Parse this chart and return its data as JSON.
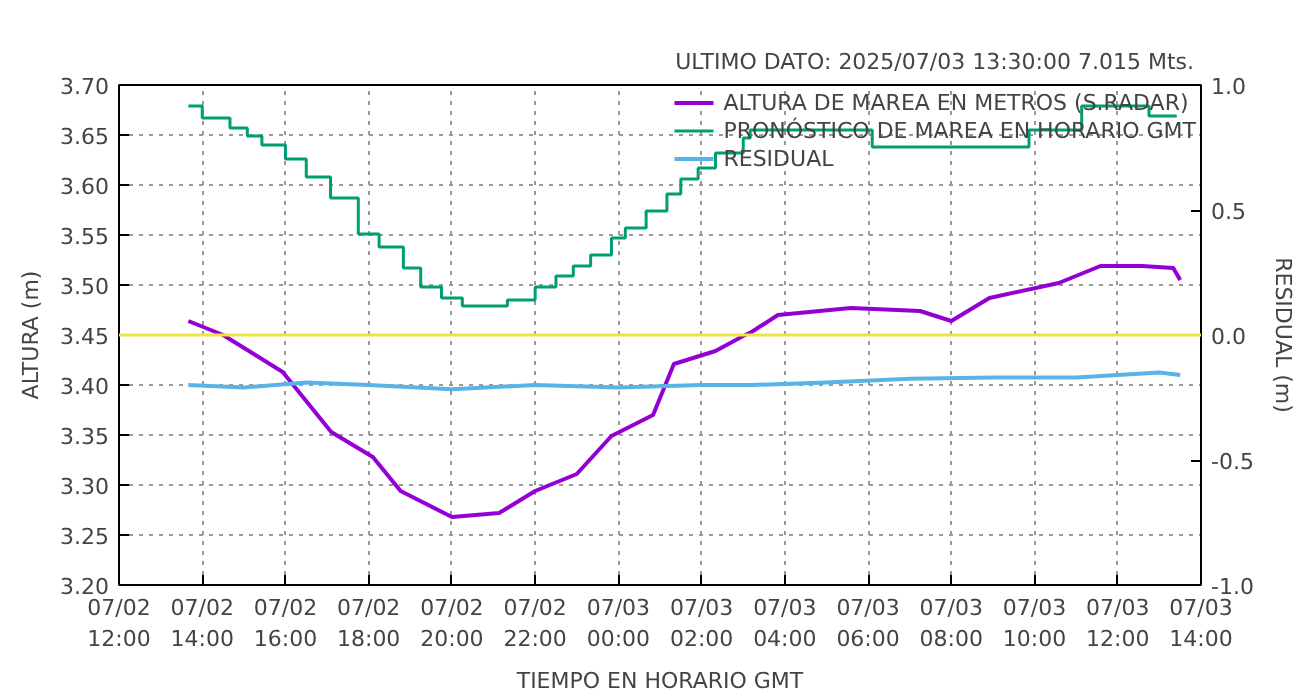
{
  "chart_data": {
    "type": "line",
    "title": "ULTIMO DATO: 2025/07/03  13:30:00 7.015 Mts.",
    "xlabel": "TIEMPO EN HORARIO GMT",
    "ylabel": "ALTURA (m)",
    "y2label": "RESIDUAL (m)",
    "xlim": [
      "2025-07-02T12:00",
      "2025-07-03T14:00"
    ],
    "xticks": [
      {
        "value": "2025-07-02T12:00",
        "label": "07/02\n12:00"
      },
      {
        "value": "2025-07-02T14:00",
        "label": "07/02\n14:00"
      },
      {
        "value": "2025-07-02T16:00",
        "label": "07/02\n16:00"
      },
      {
        "value": "2025-07-02T18:00",
        "label": "07/02\n18:00"
      },
      {
        "value": "2025-07-02T20:00",
        "label": "07/02\n20:00"
      },
      {
        "value": "2025-07-02T22:00",
        "label": "07/02\n22:00"
      },
      {
        "value": "2025-07-03T00:00",
        "label": "07/03\n00:00"
      },
      {
        "value": "2025-07-03T02:00",
        "label": "07/03\n02:00"
      },
      {
        "value": "2025-07-03T04:00",
        "label": "07/03\n04:00"
      },
      {
        "value": "2025-07-03T06:00",
        "label": "07/03\n06:00"
      },
      {
        "value": "2025-07-03T08:00",
        "label": "07/03\n08:00"
      },
      {
        "value": "2025-07-03T10:00",
        "label": "07/03\n10:00"
      },
      {
        "value": "2025-07-03T12:00",
        "label": "07/03\n12:00"
      },
      {
        "value": "2025-07-03T14:00",
        "label": "07/03\n14:00"
      }
    ],
    "ylim": [
      3.2,
      3.7
    ],
    "yticks": [
      {
        "value": 3.2,
        "label": "3.20"
      },
      {
        "value": 3.25,
        "label": "3.25"
      },
      {
        "value": 3.3,
        "label": "3.30"
      },
      {
        "value": 3.35,
        "label": "3.35"
      },
      {
        "value": 3.4,
        "label": "3.40"
      },
      {
        "value": 3.45,
        "label": "3.45"
      },
      {
        "value": 3.5,
        "label": "3.50"
      },
      {
        "value": 3.55,
        "label": "3.55"
      },
      {
        "value": 3.6,
        "label": "3.60"
      },
      {
        "value": 3.65,
        "label": "3.65"
      },
      {
        "value": 3.7,
        "label": "3.70"
      }
    ],
    "y2lim": [
      -1,
      1
    ],
    "y2ticks": [
      {
        "value": -1,
        "label": "-1.0"
      },
      {
        "value": -0.5,
        "label": "-0.5"
      },
      {
        "value": 0,
        "label": "0.0"
      },
      {
        "value": 0.5,
        "label": "0.5"
      },
      {
        "value": 1,
        "label": "1.0"
      }
    ],
    "grid": true,
    "legend": "top right",
    "ref_lines": [
      {
        "axis": "y2",
        "value": 0,
        "color": "#f0e442"
      }
    ],
    "series": [
      {
        "name": "ALTURA DE MAREA EN METROS (S.RADAR)",
        "color": "#9400d3",
        "x": [
          "2025-07-02T13:40",
          "2025-07-02T14:30",
          "2025-07-02T15:56",
          "2025-07-02T17:06",
          "2025-07-02T18:06",
          "2025-07-02T18:46",
          "2025-07-02T20:00",
          "2025-07-02T21:08",
          "2025-07-02T22:00",
          "2025-07-02T23:00",
          "2025-07-02T23:50",
          "2025-07-03T00:50",
          "2025-07-03T01:20",
          "2025-07-03T02:20",
          "2025-07-03T03:00",
          "2025-07-03T03:12",
          "2025-07-03T03:50",
          "2025-07-03T05:35",
          "2025-07-03T07:15",
          "2025-07-03T08:00",
          "2025-07-03T08:55",
          "2025-07-03T10:35",
          "2025-07-03T11:35",
          "2025-07-03T12:35",
          "2025-07-03T13:20",
          "2025-07-03T13:30"
        ],
        "values": [
          3.464,
          3.45,
          3.413,
          3.353,
          3.328,
          3.294,
          3.268,
          3.272,
          3.294,
          3.311,
          3.349,
          3.37,
          3.421,
          3.434,
          3.449,
          3.453,
          3.47,
          3.477,
          3.474,
          3.464,
          3.487,
          3.502,
          3.519,
          3.519,
          3.517,
          3.505
        ]
      },
      {
        "name": "PRONÓSTICO DE MAREA EN HORARIO GMT",
        "type": "step",
        "color": "#009e73",
        "x": [
          "2025-07-02T13:40",
          "2025-07-02T14:00",
          "2025-07-02T14:40",
          "2025-07-02T15:05",
          "2025-07-02T15:26",
          "2025-07-02T16:00",
          "2025-07-02T16:30",
          "2025-07-02T17:05",
          "2025-07-02T17:45",
          "2025-07-02T18:15",
          "2025-07-02T18:50",
          "2025-07-02T19:15",
          "2025-07-02T19:45",
          "2025-07-02T20:15",
          "2025-07-02T21:20",
          "2025-07-02T22:00",
          "2025-07-02T22:30",
          "2025-07-02T22:55",
          "2025-07-02T23:20",
          "2025-07-02T23:50",
          "2025-07-03T00:10",
          "2025-07-03T00:40",
          "2025-07-03T01:10",
          "2025-07-03T01:30",
          "2025-07-03T01:55",
          "2025-07-03T02:20",
          "2025-07-03T03:00",
          "2025-07-03T03:10",
          "2025-07-03T06:06",
          "2025-07-03T09:52",
          "2025-07-03T11:08",
          "2025-07-03T12:45",
          "2025-07-03T13:25"
        ],
        "values": [
          3.679,
          3.667,
          3.657,
          3.649,
          3.64,
          3.626,
          3.608,
          3.587,
          3.551,
          3.538,
          3.517,
          3.498,
          3.487,
          3.479,
          3.485,
          3.498,
          3.509,
          3.519,
          3.53,
          3.547,
          3.557,
          3.574,
          3.591,
          3.606,
          3.617,
          3.632,
          3.647,
          3.655,
          3.638,
          3.655,
          3.679,
          3.669,
          3.669
        ]
      },
      {
        "name": "RESIDUAL",
        "axis": "y2",
        "color": "#56b4e9",
        "x": [
          "2025-07-02T13:40",
          "2025-07-02T15:00",
          "2025-07-02T16:30",
          "2025-07-02T18:00",
          "2025-07-02T20:00",
          "2025-07-02T22:00",
          "2025-07-03T00:00",
          "2025-07-03T02:00",
          "2025-07-03T03:12",
          "2025-07-03T05:00",
          "2025-07-03T07:00",
          "2025-07-03T09:00",
          "2025-07-03T11:00",
          "2025-07-03T13:00",
          "2025-07-03T13:30"
        ],
        "values": [
          -0.2,
          -0.21,
          -0.19,
          -0.2,
          -0.217,
          -0.2,
          -0.21,
          -0.2,
          -0.2,
          -0.19,
          -0.175,
          -0.17,
          -0.17,
          -0.15,
          -0.16
        ]
      }
    ]
  }
}
